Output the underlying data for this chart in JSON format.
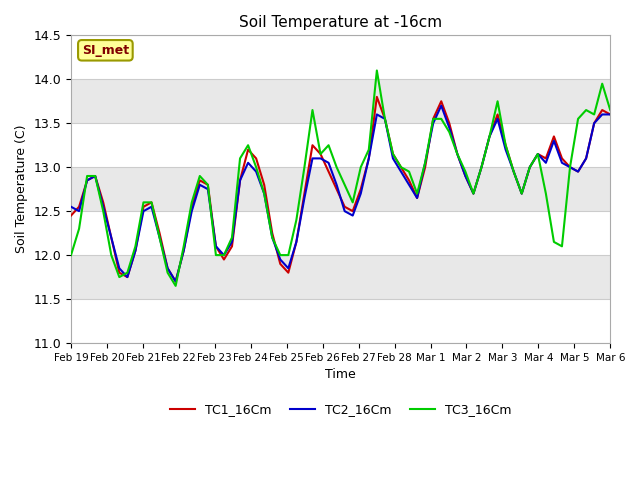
{
  "title": "Soil Temperature at -16cm",
  "xlabel": "Time",
  "ylabel": "Soil Temperature (C)",
  "ylim": [
    11.0,
    14.5
  ],
  "fig_bg_color": "#ffffff",
  "plot_bg_color": "#ffffff",
  "band_color": "#e8e8e8",
  "annotation_text": "SI_met",
  "annotation_bg": "#ffff99",
  "annotation_border": "#999900",
  "legend_labels": [
    "TC1_16Cm",
    "TC2_16Cm",
    "TC3_16Cm"
  ],
  "line_colors": [
    "#cc0000",
    "#0000cc",
    "#00cc00"
  ],
  "xtick_labels": [
    "Feb 19",
    "Feb 20",
    "Feb 21",
    "Feb 22",
    "Feb 23",
    "Feb 24",
    "Feb 25",
    "Feb 26",
    "Feb 27",
    "Feb 28",
    "Mar 1",
    "Mar 2",
    "Mar 3",
    "Mar 4",
    "Mar 5",
    "Mar 6"
  ],
  "yticks": [
    11.0,
    11.5,
    12.0,
    12.5,
    13.0,
    13.5,
    14.0,
    14.5
  ],
  "tc1": [
    12.45,
    12.55,
    12.85,
    12.9,
    12.6,
    12.2,
    11.8,
    11.75,
    12.05,
    12.55,
    12.6,
    12.25,
    11.85,
    11.7,
    12.05,
    12.55,
    12.85,
    12.8,
    12.1,
    11.95,
    12.1,
    12.85,
    13.2,
    13.1,
    12.8,
    12.25,
    11.9,
    11.8,
    12.15,
    12.7,
    13.25,
    13.15,
    12.95,
    12.75,
    12.55,
    12.5,
    12.75,
    13.1,
    13.8,
    13.55,
    13.15,
    13.0,
    12.85,
    12.65,
    13.0,
    13.55,
    13.75,
    13.5,
    13.15,
    12.9,
    12.7,
    13.0,
    13.35,
    13.6,
    13.25,
    12.95,
    12.7,
    13.0,
    13.15,
    13.1,
    13.35,
    13.1,
    13.0,
    12.95,
    13.1,
    13.5,
    13.65,
    13.6
  ],
  "tc2": [
    12.55,
    12.5,
    12.85,
    12.9,
    12.55,
    12.2,
    11.85,
    11.75,
    12.05,
    12.5,
    12.55,
    12.2,
    11.85,
    11.7,
    12.05,
    12.5,
    12.8,
    12.75,
    12.1,
    12.0,
    12.15,
    12.85,
    13.05,
    12.95,
    12.7,
    12.2,
    11.95,
    11.85,
    12.15,
    12.65,
    13.1,
    13.1,
    13.05,
    12.8,
    12.5,
    12.45,
    12.7,
    13.1,
    13.6,
    13.55,
    13.1,
    12.95,
    12.8,
    12.65,
    13.05,
    13.5,
    13.7,
    13.45,
    13.15,
    12.9,
    12.7,
    13.0,
    13.35,
    13.55,
    13.2,
    12.95,
    12.7,
    13.0,
    13.15,
    13.05,
    13.3,
    13.05,
    13.0,
    12.95,
    13.1,
    13.5,
    13.6,
    13.6
  ],
  "tc3": [
    12.0,
    12.3,
    12.9,
    12.9,
    12.5,
    12.0,
    11.75,
    11.8,
    12.1,
    12.6,
    12.6,
    12.2,
    11.8,
    11.65,
    12.1,
    12.6,
    12.9,
    12.8,
    12.0,
    12.0,
    12.2,
    13.1,
    13.25,
    13.0,
    12.7,
    12.2,
    12.0,
    12.0,
    12.4,
    13.0,
    13.65,
    13.15,
    13.25,
    13.0,
    12.8,
    12.6,
    13.0,
    13.2,
    14.1,
    13.55,
    13.15,
    13.0,
    12.95,
    12.7,
    13.05,
    13.55,
    13.55,
    13.4,
    13.15,
    12.95,
    12.7,
    13.0,
    13.35,
    13.75,
    13.25,
    12.95,
    12.7,
    13.0,
    13.15,
    12.7,
    12.15,
    12.1,
    13.0,
    13.55,
    13.65,
    13.6,
    13.95,
    13.65
  ]
}
